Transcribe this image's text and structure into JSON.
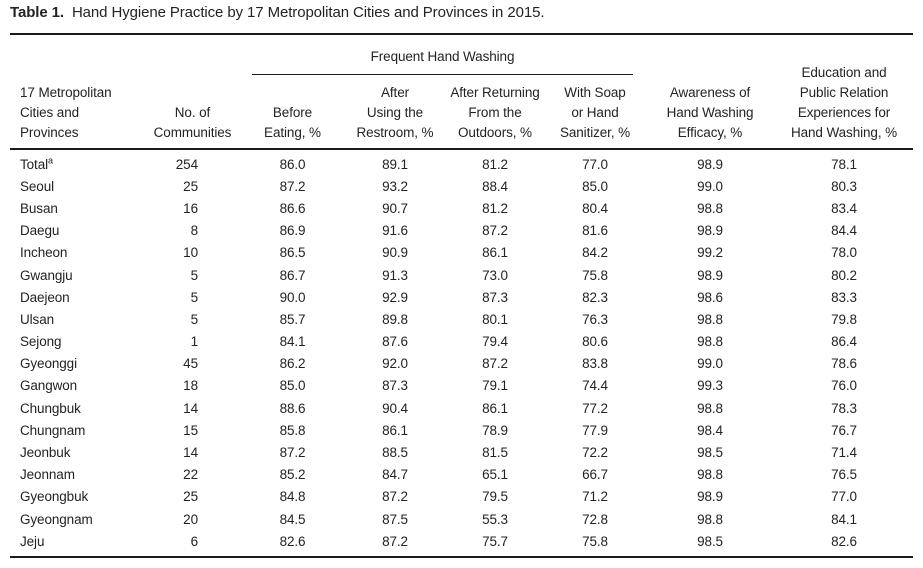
{
  "title": {
    "label": "Table 1.",
    "caption": "Hand Hygiene Practice by 17 Metropolitan Cities and Provinces in 2015."
  },
  "colors": {
    "text": "#232323",
    "rule": "#1a1a1a",
    "background": "#ffffff"
  },
  "table": {
    "spanner": "Frequent Hand Washing",
    "headers": [
      "17 Metropolitan\nCities and\nProvinces",
      "No. of\nCommunities",
      "Before\nEating, %",
      "After\nUsing the\nRestroom, %",
      "After Returning\nFrom the\nOutdoors, %",
      "With Soap\nor Hand\nSanitizer, %",
      "Awareness of\nHand Washing\nEfficacy, %",
      "Education and\nPublic Relation\nExperiences for\nHand Washing, %"
    ],
    "rows": [
      {
        "name": "Total",
        "sup": "a",
        "values": [
          "254",
          "86.0",
          "89.1",
          "81.2",
          "77.0",
          "98.9",
          "78.1"
        ]
      },
      {
        "name": "Seoul",
        "values": [
          "25",
          "87.2",
          "93.2",
          "88.4",
          "85.0",
          "99.0",
          "80.3"
        ]
      },
      {
        "name": "Busan",
        "values": [
          "16",
          "86.6",
          "90.7",
          "81.2",
          "80.4",
          "98.8",
          "83.4"
        ]
      },
      {
        "name": "Daegu",
        "values": [
          "8",
          "86.9",
          "91.6",
          "87.2",
          "81.6",
          "98.9",
          "84.4"
        ]
      },
      {
        "name": "Incheon",
        "values": [
          "10",
          "86.5",
          "90.9",
          "86.1",
          "84.2",
          "99.2",
          "78.0"
        ]
      },
      {
        "name": "Gwangju",
        "values": [
          "5",
          "86.7",
          "91.3",
          "73.0",
          "75.8",
          "98.9",
          "80.2"
        ]
      },
      {
        "name": "Daejeon",
        "values": [
          "5",
          "90.0",
          "92.9",
          "87.3",
          "82.3",
          "98.6",
          "83.3"
        ]
      },
      {
        "name": "Ulsan",
        "values": [
          "5",
          "85.7",
          "89.8",
          "80.1",
          "76.3",
          "98.8",
          "79.8"
        ]
      },
      {
        "name": "Sejong",
        "values": [
          "1",
          "84.1",
          "87.6",
          "79.4",
          "80.6",
          "98.8",
          "86.4"
        ]
      },
      {
        "name": "Gyeonggi",
        "values": [
          "45",
          "86.2",
          "92.0",
          "87.2",
          "83.8",
          "99.0",
          "78.6"
        ]
      },
      {
        "name": "Gangwon",
        "values": [
          "18",
          "85.0",
          "87.3",
          "79.1",
          "74.4",
          "99.3",
          "76.0"
        ]
      },
      {
        "name": "Chungbuk",
        "values": [
          "14",
          "88.6",
          "90.4",
          "86.1",
          "77.2",
          "98.8",
          "78.3"
        ]
      },
      {
        "name": "Chungnam",
        "values": [
          "15",
          "85.8",
          "86.1",
          "78.9",
          "77.9",
          "98.4",
          "76.7"
        ]
      },
      {
        "name": "Jeonbuk",
        "values": [
          "14",
          "87.2",
          "88.5",
          "81.5",
          "72.2",
          "98.5",
          "71.4"
        ]
      },
      {
        "name": "Jeonnam",
        "values": [
          "22",
          "85.2",
          "84.7",
          "65.1",
          "66.7",
          "98.8",
          "76.5"
        ]
      },
      {
        "name": "Gyeongbuk",
        "values": [
          "25",
          "84.8",
          "87.2",
          "79.5",
          "71.2",
          "98.9",
          "77.0"
        ]
      },
      {
        "name": "Gyeongnam",
        "values": [
          "20",
          "84.5",
          "87.5",
          "55.3",
          "72.8",
          "98.8",
          "84.1"
        ]
      },
      {
        "name": "Jeju",
        "values": [
          "6",
          "82.6",
          "87.2",
          "75.7",
          "75.8",
          "98.5",
          "82.6"
        ]
      }
    ]
  }
}
